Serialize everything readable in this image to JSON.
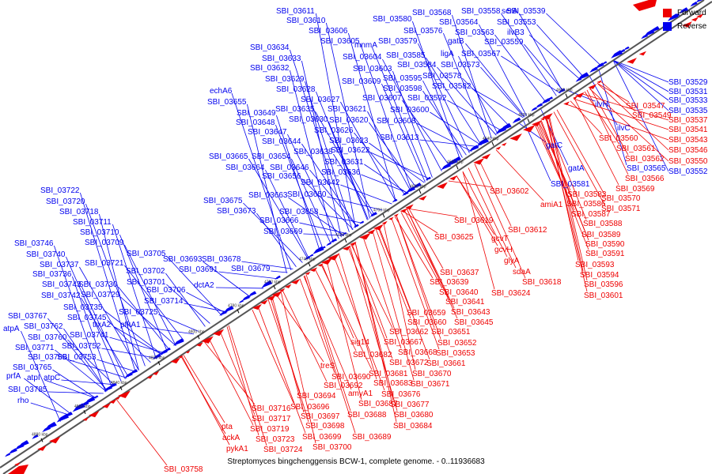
{
  "legend": {
    "forward": {
      "label": "Forward",
      "color": "#ee0000"
    },
    "reverse": {
      "label": "Reverse",
      "color": "#0000ee"
    }
  },
  "axis_color": "#555555",
  "caption": "Streptomyces bingchenggensis BCW-1, complete genome. - 0..11936683",
  "ticks": [
    "4600 kbp",
    "4620 kbp",
    "4640 kbp",
    "4660 kbp",
    "4680 kbp",
    "4700 kbp",
    "4720 kbp",
    "4740 kbp",
    "4760 kbp",
    "4780 kbp",
    "4800 kbp",
    "4820 kbp",
    "4840 kbp",
    "4860 kbp",
    "4880 kbp"
  ],
  "reverse_genes": [
    "SBI_03611",
    "SBI_03610",
    "SBI_03606",
    "SBI_03605",
    "mnmA",
    "SBI_03604",
    "SBI_03603",
    "SBI_03609",
    "SBI_03580",
    "SBI_03579",
    "SBI_03585",
    "SBI_03584",
    "SBI_03595",
    "SBI_03598",
    "SBI_03607",
    "SBI_03600",
    "SBI_03608",
    "SBI_03613",
    "SBI_03568",
    "SBI_03576",
    "SBI_03564",
    "SBI_03563",
    "SBI_03558",
    "gatB",
    "ligA",
    "SBI_03573",
    "SBI_03578",
    "SBI_03582",
    "SBI_03592",
    "SBI_03567",
    "SBI_03559",
    "serA",
    "SBI_03553",
    "ilvB3",
    "SBI_03539",
    "SBI_03634",
    "SBI_03633",
    "SBI_03632",
    "SBI_03629",
    "SBI_03628",
    "SBI_03627",
    "SBI_03635",
    "SBI_03630",
    "SBI_03621",
    "SBI_03620",
    "SBI_03626",
    "SBI_03623",
    "SBI_03622",
    "SBI_03638",
    "SBI_03631",
    "SBI_03636",
    "SBI_03642",
    "SBI_03650",
    "echA6",
    "SBI_03655",
    "SBI_03649",
    "SBI_03648",
    "SBI_03647",
    "SBI_03644",
    "SBI_03665",
    "SBI_03654",
    "SBI_03664",
    "SBI_03646",
    "SBI_03656",
    "SBI_03663",
    "SBI_03675",
    "SBI_03673",
    "SBI_03658",
    "SBI_03666",
    "SBI_03669",
    "SBI_03722",
    "SBI_03720",
    "SBI_03718",
    "SBI_03711",
    "SBI_03710",
    "SBI_03709",
    "SBI_03705",
    "SBI_03721",
    "SBI_03702",
    "SBI_03701",
    "SBI_03693",
    "SBI_03678",
    "SBI_03679",
    "SBI_03691",
    "SBI_03706",
    "SBI_03714",
    "dctA2",
    "SBI_03746",
    "SBI_03740",
    "SBI_03737",
    "SBI_03736",
    "SBI_03743",
    "SBI_03742",
    "SBI_03730",
    "SBI_03729",
    "SBI_03735",
    "SBI_03725",
    "SBI_03745",
    "trxA2",
    "pfkA1",
    "SBI_03741",
    "SBI_03767",
    "atpA",
    "SBI_03762",
    "SBI_03760",
    "SBI_03771",
    "SBI_03752",
    "SBI_03766",
    "SBI_03753",
    "SBI_03765",
    "prfA",
    "atpI",
    "atpC",
    "SBI_03785",
    "rho",
    "SBI_03529",
    "SBI_03531",
    "SBI_03533",
    "SBI_03535",
    "ilvH",
    "ilvC",
    "gatC",
    "SBI_03565",
    "SBI_03552",
    "gatA",
    "SBI_03581"
  ],
  "forward_genes": [
    "SBI_03547",
    "SBI_03549",
    "SBI_03537",
    "SBI_03541",
    "SBI_03543",
    "SBI_03546",
    "SBI_03550",
    "SBI_03560",
    "SBI_03561",
    "SBI_03562",
    "SBI_03566",
    "SBI_03569",
    "SBI_03570",
    "SBI_03571",
    "SBI_03583",
    "SBI_03586",
    "SBI_03587",
    "SBI_03588",
    "SBI_03589",
    "SBI_03590",
    "SBI_03591",
    "SBI_03593",
    "SBI_03594",
    "SBI_03596",
    "SBI_03601",
    "SBI_03602",
    "amiA1",
    "SBI_03619",
    "SBI_03612",
    "SBI_03625",
    "gcvT",
    "gcvH",
    "glyA",
    "sdaA",
    "SBI_03618",
    "SBI_03624",
    "SBI_03637",
    "SBI_03639",
    "SBI_03640",
    "SBI_03641",
    "SBI_03643",
    "SBI_03645",
    "SBI_03659",
    "SBI_03660",
    "SBI_03651",
    "SBI_03662",
    "SBI_03652",
    "SBI_03653",
    "SBI_03661",
    "sig14",
    "SBI_03667",
    "SBI_03668",
    "SBI_03682",
    "SBI_03672",
    "treS",
    "SBI_03681",
    "SBI_03670",
    "SBI_03690",
    "SBI_03683",
    "SBI_03671",
    "SBI_03692",
    "amyA1",
    "SBI_03676",
    "SBI_03694",
    "SBI_03687",
    "SBI_03677",
    "SBI_03696",
    "SBI_03688",
    "SBI_03680",
    "SBI_03716",
    "SBI_03697",
    "SBI_03717",
    "SBI_03698",
    "SBI_03684",
    "SBI_03719",
    "SBI_03699",
    "SBI_03689",
    "SBI_03723",
    "SBI_03700",
    "SBI_03724",
    "pta",
    "ackA",
    "pykA1",
    "SBI_03758"
  ]
}
